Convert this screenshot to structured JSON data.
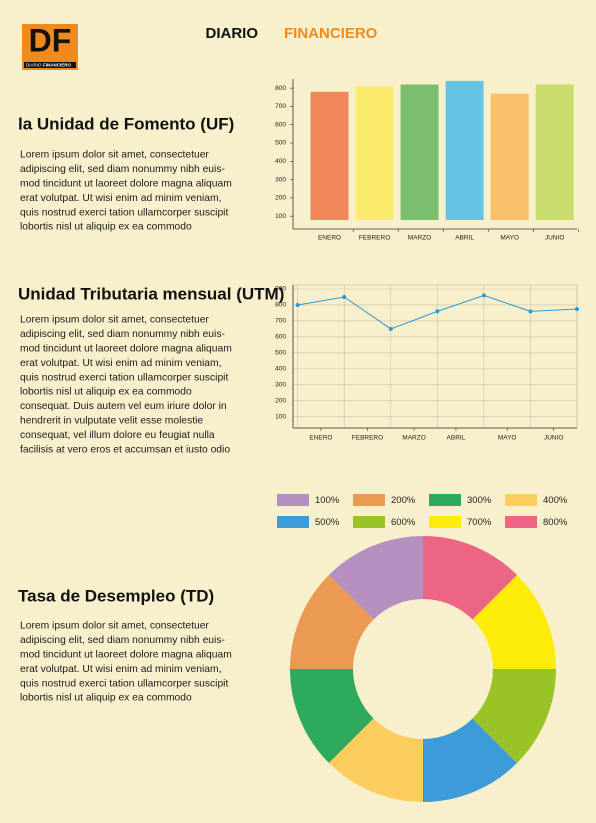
{
  "header": {
    "logo": "DF",
    "logo_sub_1": "DIARIO",
    "logo_sub_2": "FINANCIERO",
    "title_1": "DIARIO",
    "title_2": "FINANCIERO"
  },
  "sections": [
    {
      "title": "la Unidad de Fomento (UF)",
      "lines": [
        "Lorem ipsum dolor sit amet, consectetuer",
        "adipiscing elit, sed diam nonummy nibh euis-",
        "mod tincidunt ut laoreet dolore magna aliquam",
        "erat volutpat. Ut wisi enim ad minim veniam,",
        "quis nostrud exerci tation ullamcorper suscipit",
        "lobortis nisl ut aliquip ex ea commodo"
      ]
    },
    {
      "title": "Unidad Tributaria mensual (UTM)",
      "lines": [
        "Lorem ipsum dolor sit amet, consectetuer",
        "adipiscing elit, sed diam nonummy nibh euis-",
        "mod tincidunt ut laoreet dolore magna aliquam",
        "erat volutpat. Ut wisi enim ad minim veniam,",
        "quis nostrud exerci tation ullamcorper suscipit",
        "lobortis nisl ut aliquip ex ea commodo",
        "consequat. Duis autem vel eum iriure dolor in",
        "hendrerit in vulputate velit esse molestie",
        "consequat, vel illum dolore eu feugiat nulla",
        "facilisis at vero eros et accumsan et iusto odio"
      ]
    },
    {
      "title": "Tasa de Desempleo (TD)",
      "lines": [
        "Lorem ipsum dolor sit amet, consectetuer",
        "adipiscing elit, sed diam nonummy nibh euis-",
        "mod tincidunt ut laoreet dolore magna aliquam",
        "erat volutpat. Ut wisi enim ad minim veniam,",
        "quis nostrud exerci tation ullamcorper suscipit",
        "lobortis nisl ut aliquip ex ea commodo"
      ]
    }
  ],
  "chart_data": [
    {
      "type": "bar",
      "categories": [
        "ENERO",
        "FEBRERO",
        "MARZO",
        "ABRIL",
        "MAYO",
        "JUNIO"
      ],
      "values": [
        780,
        810,
        820,
        840,
        770,
        820
      ],
      "colors": [
        "#f0875a",
        "#fbeb6c",
        "#7bbf6e",
        "#65c4e3",
        "#f9c06a",
        "#c9dc6e"
      ],
      "ylim": [
        30,
        850
      ],
      "yticks": [
        100,
        200,
        300,
        400,
        500,
        600,
        700,
        800
      ]
    },
    {
      "type": "line",
      "x": [
        0,
        1,
        2,
        3,
        4,
        5,
        6
      ],
      "values": [
        800,
        850,
        650,
        760,
        860,
        760,
        775
      ],
      "color": "#2a9bd6",
      "xlim": [
        -0.1,
        6
      ],
      "xticks": [
        {
          "value": 0.5,
          "label": "ENERO"
        },
        {
          "value": 1.5,
          "label": "FEBRERO"
        },
        {
          "value": 2.5,
          "label": "MARZO"
        },
        {
          "value": 3.4,
          "label": "ABRIL"
        },
        {
          "value": 4.5,
          "label": "MAYO"
        },
        {
          "value": 5.5,
          "label": "JUNIO"
        }
      ],
      "ylim": [
        30,
        925
      ],
      "yticks": [
        100,
        200,
        300,
        400,
        500,
        600,
        700,
        800,
        900
      ],
      "grid": true
    },
    {
      "type": "pie",
      "donut": true,
      "series": [
        {
          "name": "100%",
          "color": "#b48fc0",
          "values": [
            12.5
          ]
        },
        {
          "name": "200%",
          "color": "#ea9a52",
          "values": [
            12.5
          ]
        },
        {
          "name": "300%",
          "color": "#2eaa5e",
          "values": [
            12.5
          ]
        },
        {
          "name": "400%",
          "color": "#fbcd5e",
          "values": [
            12.5
          ]
        },
        {
          "name": "500%",
          "color": "#3e9bd9",
          "values": [
            12.5
          ]
        },
        {
          "name": "600%",
          "color": "#9ac328",
          "values": [
            12.5
          ]
        },
        {
          "name": "700%",
          "color": "#fdec0a",
          "values": [
            12.5
          ]
        },
        {
          "name": "800%",
          "color": "#ec6585",
          "values": [
            12.5
          ]
        }
      ]
    }
  ]
}
